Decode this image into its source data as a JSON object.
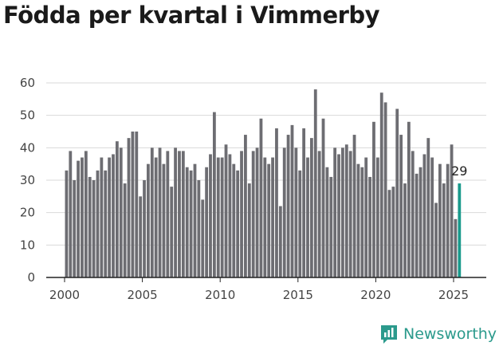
{
  "title": "Födda per kvartal i Vimmerby",
  "brand": {
    "name": "Newsworthy",
    "icon": "bar-chart-logo-icon",
    "color": "#2b9a8c"
  },
  "colors": {
    "bar": "#6d6d72",
    "highlight": "#1a9a8c",
    "grid": "#d9d9d9",
    "axis": "#222222"
  },
  "chart_data": {
    "type": "bar",
    "title": "Födda per kvartal i Vimmerby",
    "xlabel": "",
    "ylabel": "",
    "x_start": 2000,
    "x_ticks": [
      "2000",
      "2005",
      "2010",
      "2015",
      "2020",
      "2025"
    ],
    "y_ticks": [
      0,
      10,
      20,
      30,
      40,
      50,
      60
    ],
    "ylim": [
      0,
      60
    ],
    "grid": true,
    "highlight_label": "29",
    "values": [
      33,
      39,
      30,
      36,
      37,
      39,
      31,
      30,
      33,
      37,
      33,
      37,
      38,
      42,
      40,
      29,
      43,
      45,
      45,
      25,
      30,
      35,
      40,
      37,
      40,
      35,
      39,
      28,
      40,
      39,
      39,
      34,
      33,
      35,
      30,
      24,
      34,
      38,
      51,
      37,
      37,
      41,
      38,
      35,
      33,
      39,
      44,
      29,
      39,
      40,
      49,
      37,
      35,
      37,
      46,
      22,
      40,
      44,
      47,
      40,
      33,
      46,
      37,
      43,
      58,
      39,
      49,
      34,
      31,
      40,
      38,
      40,
      41,
      39,
      44,
      35,
      34,
      37,
      31,
      48,
      37,
      57,
      54,
      27,
      28,
      52,
      44,
      29,
      48,
      39,
      32,
      34,
      38,
      43,
      37,
      23,
      35,
      29,
      35,
      41,
      18,
      29
    ]
  }
}
